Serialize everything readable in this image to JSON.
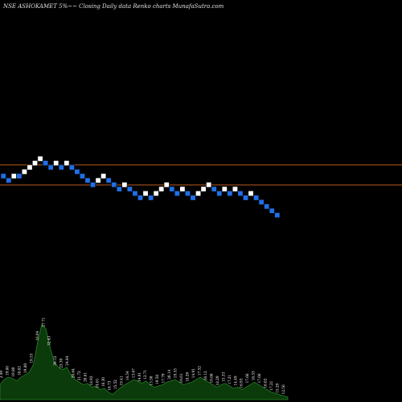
{
  "chart_data": {
    "type": "renko",
    "title": "NSE ASHOKAMET 5%~~ Closing Daily data Renko charts MunafaSutra.com",
    "colors": {
      "background": "#000000",
      "up_brick": "#ffffff",
      "down_brick": "#1f6fe6",
      "line": "#b85a1e",
      "volume_fill": "#0b3a0b",
      "volume_stroke": "#2a8a2a"
    },
    "bricks": [
      {
        "level": 0,
        "dir": "down"
      },
      {
        "level": -1,
        "dir": "down"
      },
      {
        "level": 0,
        "dir": "up"
      },
      {
        "level": 0,
        "dir": "down"
      },
      {
        "level": 1,
        "dir": "up"
      },
      {
        "level": 2,
        "dir": "up"
      },
      {
        "level": 3,
        "dir": "up"
      },
      {
        "level": 4,
        "dir": "up"
      },
      {
        "level": 3,
        "dir": "down"
      },
      {
        "level": 2,
        "dir": "down"
      },
      {
        "level": 3,
        "dir": "up"
      },
      {
        "level": 2,
        "dir": "down"
      },
      {
        "level": 3,
        "dir": "up"
      },
      {
        "level": 2,
        "dir": "down"
      },
      {
        "level": 1,
        "dir": "down"
      },
      {
        "level": 0,
        "dir": "down"
      },
      {
        "level": -1,
        "dir": "down"
      },
      {
        "level": -2,
        "dir": "down"
      },
      {
        "level": -1,
        "dir": "up"
      },
      {
        "level": 0,
        "dir": "up"
      },
      {
        "level": -1,
        "dir": "down"
      },
      {
        "level": -2,
        "dir": "down"
      },
      {
        "level": -3,
        "dir": "down"
      },
      {
        "level": -2,
        "dir": "up"
      },
      {
        "level": -3,
        "dir": "down"
      },
      {
        "level": -4,
        "dir": "down"
      },
      {
        "level": -5,
        "dir": "down"
      },
      {
        "level": -4,
        "dir": "up"
      },
      {
        "level": -5,
        "dir": "down"
      },
      {
        "level": -4,
        "dir": "up"
      },
      {
        "level": -3,
        "dir": "up"
      },
      {
        "level": -2,
        "dir": "up"
      },
      {
        "level": -3,
        "dir": "down"
      },
      {
        "level": -4,
        "dir": "down"
      },
      {
        "level": -3,
        "dir": "up"
      },
      {
        "level": -4,
        "dir": "down"
      },
      {
        "level": -5,
        "dir": "down"
      },
      {
        "level": -4,
        "dir": "up"
      },
      {
        "level": -3,
        "dir": "up"
      },
      {
        "level": -2,
        "dir": "up"
      },
      {
        "level": -3,
        "dir": "down"
      },
      {
        "level": -4,
        "dir": "down"
      },
      {
        "level": -3,
        "dir": "up"
      },
      {
        "level": -4,
        "dir": "down"
      },
      {
        "level": -3,
        "dir": "up"
      },
      {
        "level": -4,
        "dir": "down"
      },
      {
        "level": -5,
        "dir": "down"
      },
      {
        "level": -4,
        "dir": "up"
      },
      {
        "level": -5,
        "dir": "down"
      },
      {
        "level": -6,
        "dir": "down"
      },
      {
        "level": -7,
        "dir": "down"
      },
      {
        "level": -8,
        "dir": "down"
      },
      {
        "level": -9,
        "dir": "down"
      }
    ],
    "volume_labels": [
      "2.49",
      "19.86",
      "19.80",
      "18.62",
      "19.80",
      "19.53",
      "16.04",
      "27.71",
      "32.63",
      "30.12",
      "23.39",
      "24.84",
      "20.64",
      "21.72",
      "20.61",
      "18.92",
      "14.01",
      "16.30",
      "16.73",
      "15.52",
      "19.41",
      "14.54",
      "13.67",
      "14.91",
      "12.71",
      "13.50",
      "19.58",
      "17.79",
      "20.14",
      "19.53",
      "19.61",
      "18.20",
      "14.91",
      "17.52",
      "16.12",
      "19.60",
      "18.29",
      "15.33",
      "17.21",
      "14.49",
      "16.93",
      "17.66",
      "16.53",
      "17.66",
      "16.02",
      "17.21",
      "15.29",
      "12.56"
    ],
    "volume_values": [
      12,
      16,
      18,
      17,
      15,
      18,
      20,
      22,
      28,
      46,
      60,
      57,
      42,
      30,
      26,
      24,
      26,
      20,
      16,
      14,
      12,
      13,
      10,
      11,
      8,
      9,
      6,
      4,
      7,
      10,
      12,
      14,
      16,
      15,
      13,
      15,
      12,
      10,
      11,
      12,
      14,
      15,
      16,
      14,
      12,
      13,
      14,
      16,
      18,
      16,
      14,
      12,
      10,
      12,
      13,
      11,
      9,
      10,
      8,
      10,
      12,
      14,
      12,
      10,
      8,
      6,
      5,
      4,
      3,
      2
    ]
  }
}
